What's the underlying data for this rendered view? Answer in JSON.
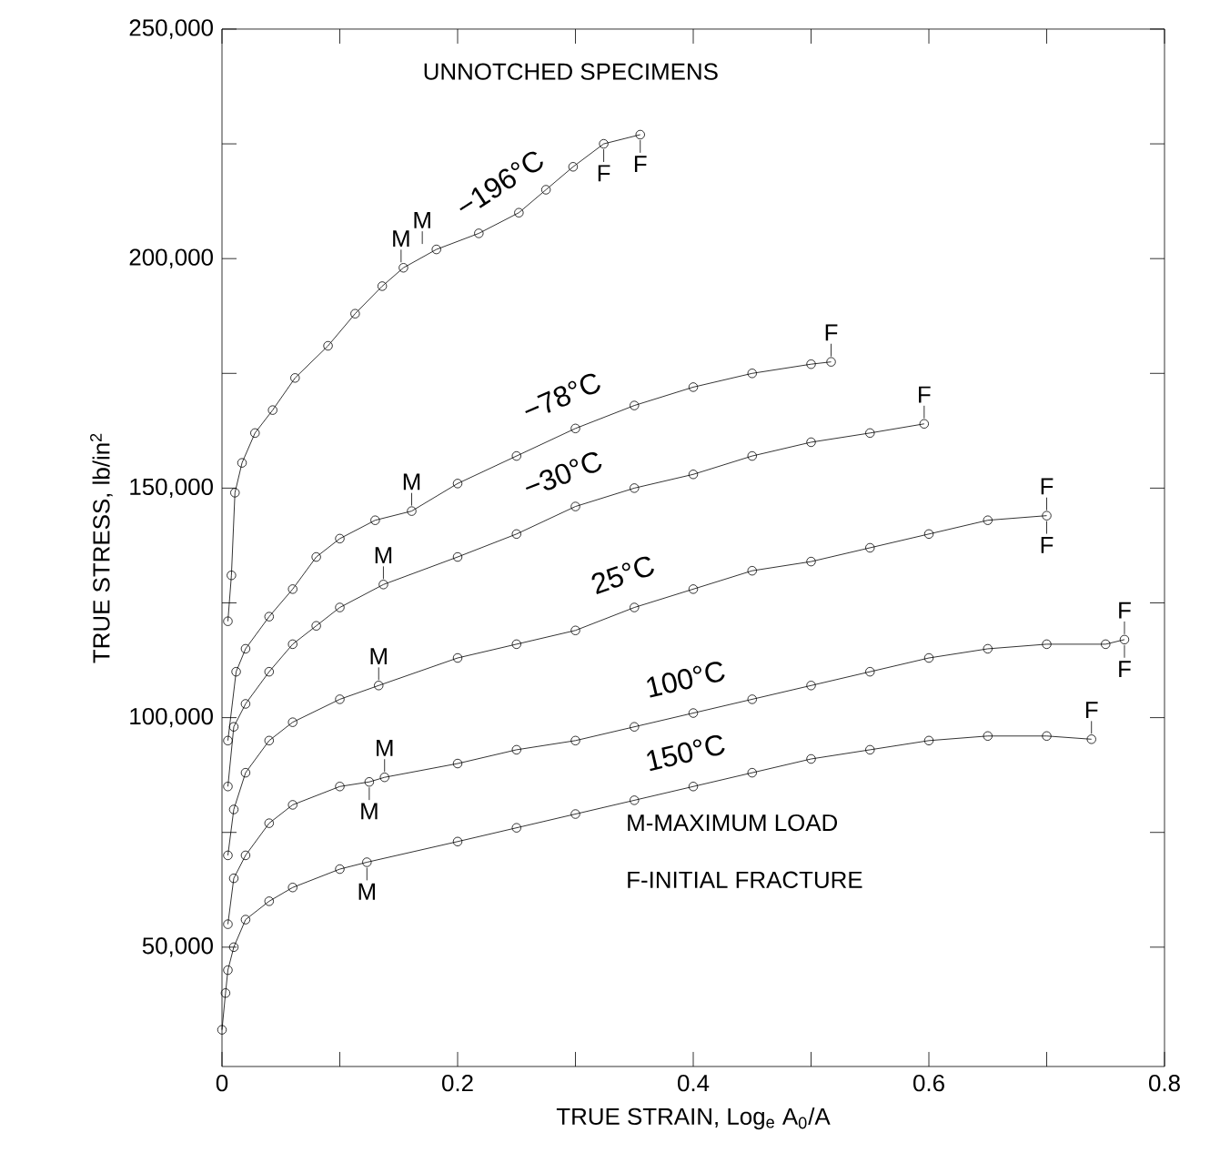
{
  "chart_data": {
    "type": "line",
    "xlabel": "TRUE STRAIN, Log$_{e}$ A$_{0}$/A",
    "ylabel": "TRUE STRESS, lb/in$^{2}$",
    "series": [
      {
        "name": "−196°C",
        "color": "#000000",
        "x": [
          0.005,
          0.008,
          0.011,
          0.017,
          0.028,
          0.043,
          0.062,
          0.09,
          0.113,
          0.136,
          0.154,
          0.182,
          0.218,
          0.252,
          0.275,
          0.298,
          0.324,
          0.355
        ],
        "values": [
          121000,
          131000,
          149000,
          155500,
          162000,
          167000,
          174000,
          181000,
          188000,
          194000,
          198000,
          202000,
          205500,
          210000,
          215000,
          220000,
          225000,
          227000
        ]
      },
      {
        "name": "−78°C",
        "color": "#000000",
        "x": [
          0.005,
          0.012,
          0.02,
          0.04,
          0.06,
          0.08,
          0.1,
          0.13,
          0.161,
          0.2,
          0.25,
          0.3,
          0.35,
          0.4,
          0.45,
          0.5,
          0.517
        ],
        "values": [
          95000,
          110000,
          115000,
          122000,
          128000,
          135000,
          139000,
          143000,
          145000,
          151000,
          157000,
          163000,
          168000,
          172000,
          175000,
          177000,
          177500
        ]
      },
      {
        "name": "−30°C",
        "color": "#000000",
        "x": [
          0.005,
          0.01,
          0.02,
          0.04,
          0.06,
          0.08,
          0.1,
          0.137,
          0.2,
          0.25,
          0.3,
          0.35,
          0.4,
          0.45,
          0.5,
          0.55,
          0.596
        ],
        "values": [
          85000,
          98000,
          103000,
          110000,
          116000,
          120000,
          124000,
          129000,
          135000,
          140000,
          146000,
          150000,
          153000,
          157000,
          160000,
          162000,
          164000
        ]
      },
      {
        "name": "25°C",
        "color": "#000000",
        "x": [
          0.005,
          0.01,
          0.02,
          0.04,
          0.06,
          0.1,
          0.133,
          0.2,
          0.25,
          0.3,
          0.35,
          0.4,
          0.45,
          0.5,
          0.55,
          0.6,
          0.65,
          0.7
        ],
        "values": [
          70000,
          80000,
          88000,
          95000,
          99000,
          104000,
          107000,
          113000,
          116000,
          119000,
          124000,
          128000,
          132000,
          134000,
          137000,
          140000,
          143000,
          144000
        ]
      },
      {
        "name": "100°C",
        "color": "#000000",
        "x": [
          0.005,
          0.01,
          0.02,
          0.04,
          0.06,
          0.1,
          0.125,
          0.138,
          0.2,
          0.25,
          0.3,
          0.35,
          0.4,
          0.45,
          0.5,
          0.55,
          0.6,
          0.65,
          0.7,
          0.75,
          0.766
        ],
        "values": [
          55000,
          65000,
          70000,
          77000,
          81000,
          85000,
          86000,
          87000,
          90000,
          93000,
          95000,
          98000,
          101000,
          104000,
          107000,
          110000,
          113000,
          115000,
          116000,
          116000,
          117000
        ]
      },
      {
        "name": "150°C",
        "color": "#000000",
        "x": [
          0,
          0.003,
          0.005,
          0.01,
          0.02,
          0.04,
          0.06,
          0.1,
          0.123,
          0.2,
          0.25,
          0.3,
          0.35,
          0.4,
          0.45,
          0.5,
          0.55,
          0.6,
          0.65,
          0.7,
          0.738
        ],
        "values": [
          32000,
          40000,
          45000,
          50000,
          56000,
          60000,
          63000,
          67000,
          68500,
          73000,
          76000,
          79000,
          82000,
          85000,
          88000,
          91000,
          93000,
          95000,
          96000,
          96000,
          95300
        ]
      }
    ],
    "xlim": [
      0,
      0.8
    ],
    "ylim": [
      24000,
      250000
    ],
    "xticks": [
      0,
      {
        "value": 0.1,
        "label": null
      },
      0.2,
      {
        "value": 0.3,
        "label": null
      },
      0.4,
      {
        "value": 0.5,
        "label": null
      },
      0.6,
      {
        "value": 0.7,
        "label": null
      },
      0.8
    ],
    "yticks": [
      {
        "value": 50000,
        "label": "50,000"
      },
      {
        "value": 75000,
        "label": null
      },
      {
        "value": 100000,
        "label": "100,000"
      },
      {
        "value": 125000,
        "label": null
      },
      {
        "value": 150000,
        "label": "150,000"
      },
      {
        "value": 175000,
        "label": null
      },
      {
        "value": 200000,
        "label": "200,000"
      },
      {
        "value": 225000,
        "label": null
      },
      {
        "value": 250000,
        "label": "250,000"
      }
    ],
    "marker": "circle",
    "grid": false,
    "annotations": [
      "UNNOTCHED SPECIMENS",
      "M-MAXIMUM LOAD",
      "F-INITIAL FRACTURE",
      {
        "text": "M",
        "x": 0.152,
        "y": 198000
      },
      {
        "text": "M",
        "x": 0.17,
        "y": 202000
      },
      {
        "text": "F",
        "x": 0.324,
        "y": 225000
      },
      {
        "text": "F",
        "x": 0.355,
        "y": 227000
      },
      {
        "text": "M",
        "x": 0.161,
        "y": 145000
      },
      {
        "text": "F",
        "x": 0.517,
        "y": 177500
      },
      {
        "text": "M",
        "x": 0.137,
        "y": 129000
      },
      {
        "text": "F",
        "x": 0.596,
        "y": 164000
      },
      {
        "text": "M",
        "x": 0.133,
        "y": 107000
      },
      {
        "text": "F",
        "x": 0.7,
        "y": 144000
      },
      {
        "text": "F",
        "x": 0.7,
        "y": 144000
      },
      {
        "text": "M",
        "x": 0.138,
        "y": 87000
      },
      {
        "text": "M",
        "x": 0.125,
        "y": 86000
      },
      {
        "text": "F",
        "x": 0.766,
        "y": 117000
      },
      {
        "text": "F",
        "x": 0.766,
        "y": 117000
      },
      {
        "text": "M",
        "x": 0.123,
        "y": 68500
      },
      {
        "text": "F",
        "x": 0.738,
        "y": 95300
      }
    ]
  }
}
